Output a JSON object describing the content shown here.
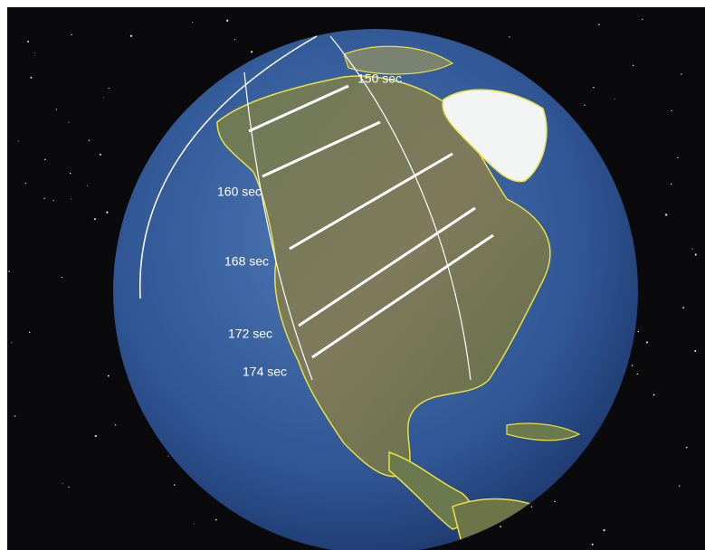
{
  "labels": [
    "150 sec",
    "160 sec",
    "168 sec",
    "172 sec",
    "174 sec"
  ]
}
